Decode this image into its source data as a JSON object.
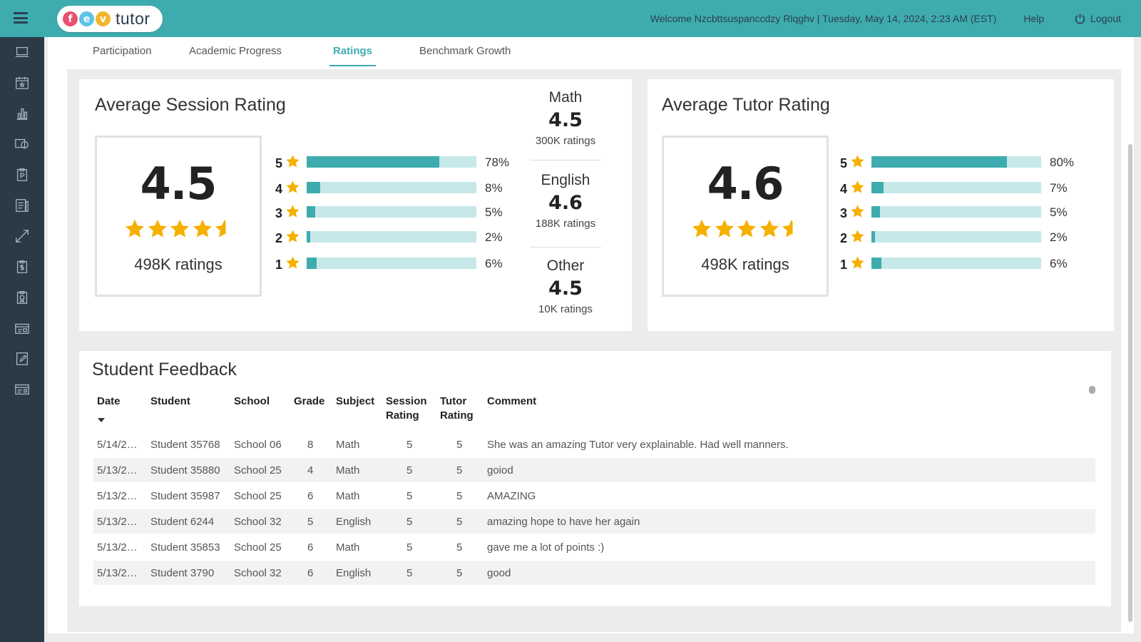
{
  "topbar": {
    "logo_letters": [
      "f",
      "e",
      "v"
    ],
    "logo_colors": [
      "#e8506e",
      "#5bc3e8",
      "#f2b52a"
    ],
    "logo_word": "tutor",
    "welcome": "Welcome Nzcbttsuspanccdzy Rlqghv |",
    "datetime": "Tuesday, May 14, 2024, 2:23 AM (EST)",
    "help": "Help",
    "logout": "Logout"
  },
  "sidebar": {
    "icons": [
      "laptop-icon",
      "calendar-star-icon",
      "bar-chart-icon",
      "camera-icon",
      "clipboard-p-icon",
      "report-list-icon",
      "expand-arrows-icon",
      "dollar-clipboard-icon",
      "award-clipboard-icon",
      "id-cards-icon",
      "edit-document-icon",
      "id-card-icon"
    ]
  },
  "tabs": [
    {
      "label": "Participation",
      "active": false
    },
    {
      "label": "Academic Progress",
      "active": false
    },
    {
      "label": "Ratings",
      "active": true
    },
    {
      "label": "Benchmark Growth",
      "active": false
    }
  ],
  "session": {
    "title": "Average Session Rating",
    "average": "4.5",
    "ratings": "498K ratings",
    "star_fill": 4.5,
    "bars": [
      {
        "label": "5",
        "percent": 78,
        "pct_text": "78%"
      },
      {
        "label": "4",
        "percent": 8,
        "pct_text": "8%"
      },
      {
        "label": "3",
        "percent": 5,
        "pct_text": "5%"
      },
      {
        "label": "2",
        "percent": 2,
        "pct_text": "2%"
      },
      {
        "label": "1",
        "percent": 6,
        "pct_text": "6%"
      }
    ],
    "subjects": [
      {
        "name": "Math",
        "value": "4.5",
        "count": "300K ratings"
      },
      {
        "name": "English",
        "value": "4.6",
        "count": "188K ratings"
      },
      {
        "name": "Other",
        "value": "4.5",
        "count": "10K ratings"
      }
    ]
  },
  "tutor": {
    "title": "Average Tutor Rating",
    "average": "4.6",
    "ratings": "498K ratings",
    "star_fill": 4.6,
    "bars": [
      {
        "label": "5",
        "percent": 80,
        "pct_text": "80%"
      },
      {
        "label": "4",
        "percent": 7,
        "pct_text": "7%"
      },
      {
        "label": "3",
        "percent": 5,
        "pct_text": "5%"
      },
      {
        "label": "2",
        "percent": 2,
        "pct_text": "2%"
      },
      {
        "label": "1",
        "percent": 6,
        "pct_text": "6%"
      }
    ]
  },
  "feedback": {
    "title": "Student Feedback",
    "headers": {
      "date": "Date",
      "student": "Student",
      "school": "School",
      "grade": "Grade",
      "subject": "Subject",
      "session_rating_1": "Session",
      "session_rating_2": "Rating",
      "tutor_rating_1": "Tutor",
      "tutor_rating_2": "Rating",
      "comment": "Comment"
    },
    "rows": [
      {
        "date": "5/14/2…",
        "student": "Student 35768",
        "school": "School 06",
        "grade": "8",
        "subject": "Math",
        "session": "5",
        "tutor": "5",
        "comment": "She was an amazing Tutor very explainable. Had well manners."
      },
      {
        "date": "5/13/2…",
        "student": "Student 35880",
        "school": "School 25",
        "grade": "4",
        "subject": "Math",
        "session": "5",
        "tutor": "5",
        "comment": "goiod"
      },
      {
        "date": "5/13/2…",
        "student": "Student 35987",
        "school": "School 25",
        "grade": "6",
        "subject": "Math",
        "session": "5",
        "tutor": "5",
        "comment": "AMAZING"
      },
      {
        "date": "5/13/2…",
        "student": "Student 6244",
        "school": "School 32",
        "grade": "5",
        "subject": "English",
        "session": "5",
        "tutor": "5",
        "comment": "amazing hope to have her again"
      },
      {
        "date": "5/13/2…",
        "student": "Student 35853",
        "school": "School 25",
        "grade": "6",
        "subject": "Math",
        "session": "5",
        "tutor": "5",
        "comment": "gave me a lot of points :)"
      },
      {
        "date": "5/13/2…",
        "student": "Student 3790",
        "school": "School 32",
        "grade": "6",
        "subject": "English",
        "session": "5",
        "tutor": "5",
        "comment": "good"
      }
    ]
  },
  "colors": {
    "accent": "#3eacae",
    "bar_track": "#c7e8e9",
    "star": "#f5b000",
    "sidebar": "#2b3a47"
  }
}
